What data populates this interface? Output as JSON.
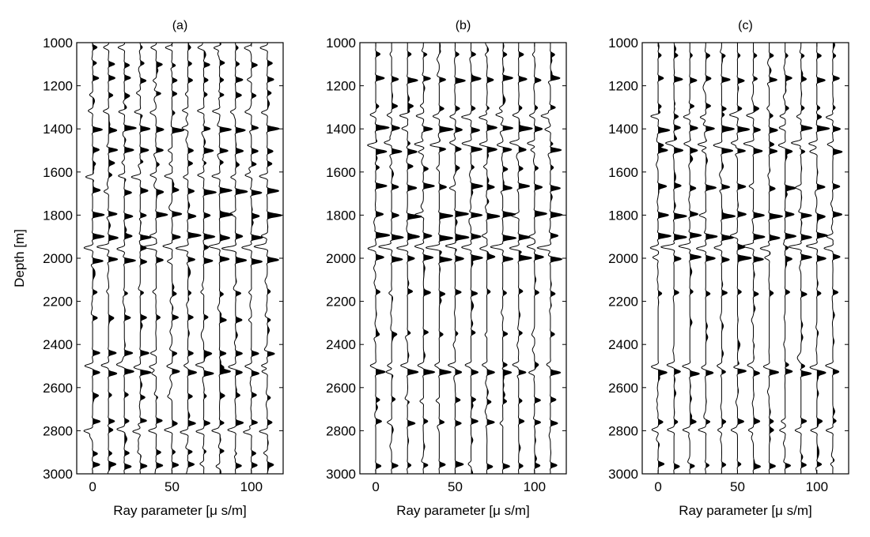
{
  "figure": {
    "ylabel": "Depth [m]",
    "xlabel": "Ray parameter [μ s/m]"
  },
  "chart_data": [
    {
      "type": "line",
      "title": "(a)",
      "xlabel": "Ray parameter [μ s/m]",
      "ylabel": "Depth [m]",
      "xlim": [
        -10,
        120
      ],
      "ylim": [
        3000,
        1000
      ],
      "xticks": [
        0,
        50,
        100
      ],
      "yticks": [
        1000,
        1200,
        1400,
        1600,
        1800,
        2000,
        2200,
        2400,
        2600,
        2800,
        3000
      ],
      "trace_ray_parameters": [
        0,
        10,
        20,
        30,
        40,
        50,
        60,
        70,
        80,
        90,
        100,
        110
      ],
      "fill": "positive-black",
      "events": [
        {
          "depth": 1020,
          "amplitude": -0.5
        },
        {
          "depth": 1100,
          "amplitude": 0.45
        },
        {
          "depth": 1170,
          "amplitude": 0.5
        },
        {
          "depth": 1240,
          "amplitude": 0.45
        },
        {
          "depth": 1320,
          "amplitude": -0.5
        },
        {
          "depth": 1400,
          "amplitude": 0.85
        },
        {
          "depth": 1500,
          "amplitude": 0.7
        },
        {
          "depth": 1560,
          "amplitude": 0.35
        },
        {
          "depth": 1620,
          "amplitude": -0.6
        },
        {
          "depth": 1690,
          "amplitude": 0.85
        },
        {
          "depth": 1800,
          "amplitude": 0.85
        },
        {
          "depth": 1900,
          "amplitude": 0.9
        },
        {
          "depth": 1950,
          "amplitude": -0.95
        },
        {
          "depth": 2010,
          "amplitude": 0.8
        },
        {
          "depth": 2160,
          "amplitude": 0.4
        },
        {
          "depth": 2280,
          "amplitude": 0.45
        },
        {
          "depth": 2440,
          "amplitude": 0.65
        },
        {
          "depth": 2500,
          "amplitude": -0.55
        },
        {
          "depth": 2530,
          "amplitude": 0.75
        },
        {
          "depth": 2640,
          "amplitude": 0.35
        },
        {
          "depth": 2760,
          "amplitude": 0.6
        },
        {
          "depth": 2800,
          "amplitude": -0.6
        },
        {
          "depth": 2900,
          "amplitude": 0.4
        },
        {
          "depth": 2960,
          "amplitude": 0.5
        }
      ]
    },
    {
      "type": "line",
      "title": "(b)",
      "xlabel": "Ray parameter [μ s/m]",
      "ylabel": "Depth [m]",
      "xlim": [
        -10,
        120
      ],
      "ylim": [
        3000,
        1000
      ],
      "xticks": [
        0,
        50,
        100
      ],
      "yticks": [
        1000,
        1200,
        1400,
        1600,
        1800,
        2000,
        2200,
        2400,
        2600,
        2800,
        3000
      ],
      "trace_ray_parameters": [
        0,
        10,
        20,
        30,
        40,
        50,
        60,
        70,
        80,
        90,
        100,
        110
      ],
      "fill": "positive-black",
      "events": [
        {
          "depth": 1060,
          "amplitude": 0.35
        },
        {
          "depth": 1170,
          "amplitude": 0.7
        },
        {
          "depth": 1300,
          "amplitude": 0.4
        },
        {
          "depth": 1340,
          "amplitude": -0.6
        },
        {
          "depth": 1400,
          "amplitude": 0.9
        },
        {
          "depth": 1470,
          "amplitude": -0.7
        },
        {
          "depth": 1500,
          "amplitude": 0.8
        },
        {
          "depth": 1580,
          "amplitude": 0.4
        },
        {
          "depth": 1670,
          "amplitude": 0.85
        },
        {
          "depth": 1800,
          "amplitude": 0.95
        },
        {
          "depth": 1900,
          "amplitude": 0.95
        },
        {
          "depth": 1950,
          "amplitude": -0.95
        },
        {
          "depth": 2000,
          "amplitude": 0.9
        },
        {
          "depth": 2160,
          "amplitude": 0.45
        },
        {
          "depth": 2350,
          "amplitude": 0.35
        },
        {
          "depth": 2500,
          "amplitude": -0.5
        },
        {
          "depth": 2530,
          "amplitude": 0.8
        },
        {
          "depth": 2660,
          "amplitude": 0.4
        },
        {
          "depth": 2760,
          "amplitude": 0.55
        },
        {
          "depth": 2960,
          "amplitude": 0.5
        }
      ]
    },
    {
      "type": "line",
      "title": "(c)",
      "xlabel": "Ray parameter [μ s/m]",
      "ylabel": "Depth [m]",
      "xlim": [
        -10,
        120
      ],
      "ylim": [
        3000,
        1000
      ],
      "xticks": [
        0,
        50,
        100
      ],
      "yticks": [
        1000,
        1200,
        1400,
        1600,
        1800,
        2000,
        2200,
        2400,
        2600,
        2800,
        3000
      ],
      "trace_ray_parameters": [
        0,
        10,
        20,
        30,
        40,
        50,
        60,
        70,
        80,
        90,
        100,
        110
      ],
      "fill": "positive-black",
      "events": [
        {
          "depth": 1060,
          "amplitude": 0.3
        },
        {
          "depth": 1170,
          "amplitude": 0.65
        },
        {
          "depth": 1300,
          "amplitude": 0.35
        },
        {
          "depth": 1340,
          "amplitude": -0.55
        },
        {
          "depth": 1400,
          "amplitude": 0.85
        },
        {
          "depth": 1470,
          "amplitude": -0.7
        },
        {
          "depth": 1500,
          "amplitude": 0.75
        },
        {
          "depth": 1670,
          "amplitude": 0.75
        },
        {
          "depth": 1800,
          "amplitude": 0.9
        },
        {
          "depth": 1900,
          "amplitude": 0.9
        },
        {
          "depth": 1950,
          "amplitude": -0.95
        },
        {
          "depth": 2000,
          "amplitude": 0.8
        },
        {
          "depth": 2160,
          "amplitude": 0.4
        },
        {
          "depth": 2500,
          "amplitude": -0.5
        },
        {
          "depth": 2530,
          "amplitude": 0.7
        },
        {
          "depth": 2760,
          "amplitude": 0.45
        },
        {
          "depth": 2800,
          "amplitude": -0.5
        },
        {
          "depth": 2960,
          "amplitude": 0.45
        }
      ]
    }
  ]
}
